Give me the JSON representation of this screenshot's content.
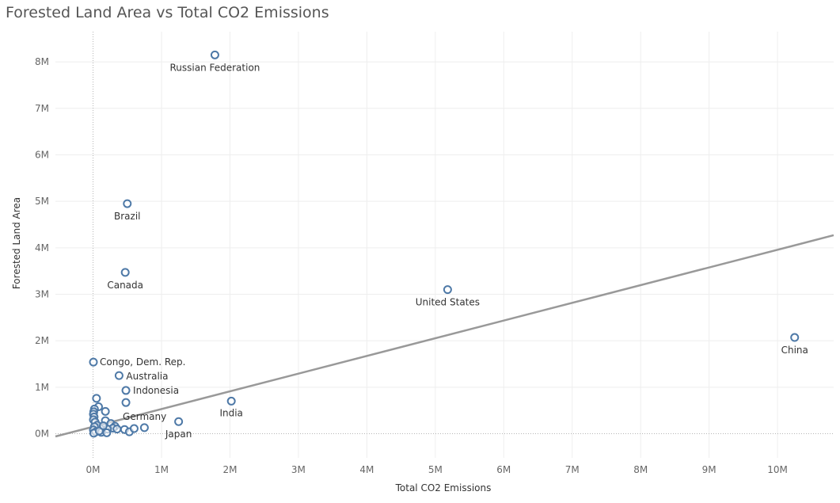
{
  "chart_data": {
    "type": "scatter",
    "title": "Forested Land Area vs Total CO2 Emissions",
    "xlabel": "Total CO2 Emissions",
    "ylabel": "Forested Land Area",
    "xlim": [
      -550000,
      10820000
    ],
    "ylim": [
      -520000,
      8650000
    ],
    "x_ticks": [
      0,
      1000000,
      2000000,
      3000000,
      4000000,
      5000000,
      6000000,
      7000000,
      8000000,
      9000000,
      10000000
    ],
    "x_tick_labels": [
      "0M",
      "1M",
      "2M",
      "3M",
      "4M",
      "5M",
      "6M",
      "7M",
      "8M",
      "9M",
      "10M"
    ],
    "y_ticks": [
      0,
      1000000,
      2000000,
      3000000,
      4000000,
      5000000,
      6000000,
      7000000,
      8000000
    ],
    "y_tick_labels": [
      "0M",
      "1M",
      "2M",
      "3M",
      "4M",
      "5M",
      "6M",
      "7M",
      "8M"
    ],
    "grid": true,
    "marker_color": "#4e79a7",
    "trend_color": "#999999",
    "trend_line": {
      "x": [
        -550000,
        10820000
      ],
      "y": [
        -60000,
        4270000
      ]
    },
    "points": [
      {
        "label": "Russian Federation",
        "x": 1780000,
        "y": 8150000
      },
      {
        "label": "Brazil",
        "x": 500000,
        "y": 4950000
      },
      {
        "label": "Canada",
        "x": 470000,
        "y": 3470000
      },
      {
        "label": "United States",
        "x": 5180000,
        "y": 3100000
      },
      {
        "label": "China",
        "x": 10250000,
        "y": 2070000
      },
      {
        "label": "Congo, Dem. Rep.",
        "x": 5000,
        "y": 1540000
      },
      {
        "label": "Australia",
        "x": 380000,
        "y": 1250000
      },
      {
        "label": "Indonesia",
        "x": 480000,
        "y": 930000
      },
      {
        "label": "India",
        "x": 2020000,
        "y": 700000
      },
      {
        "label": "Germany",
        "x": 480000,
        "y": 670000
      },
      {
        "label": "Japan",
        "x": 1250000,
        "y": 260000
      },
      {
        "label": "",
        "x": 50000,
        "y": 760000
      },
      {
        "label": "",
        "x": 80000,
        "y": 580000
      },
      {
        "label": "",
        "x": 20000,
        "y": 530000
      },
      {
        "label": "",
        "x": 10000,
        "y": 470000
      },
      {
        "label": "",
        "x": 180000,
        "y": 480000
      },
      {
        "label": "",
        "x": 5000,
        "y": 420000
      },
      {
        "label": "",
        "x": 15000,
        "y": 360000
      },
      {
        "label": "",
        "x": 5000,
        "y": 300000
      },
      {
        "label": "",
        "x": 30000,
        "y": 250000
      },
      {
        "label": "",
        "x": 180000,
        "y": 280000
      },
      {
        "label": "",
        "x": 260000,
        "y": 220000
      },
      {
        "label": "",
        "x": 320000,
        "y": 160000
      },
      {
        "label": "",
        "x": 290000,
        "y": 120000
      },
      {
        "label": "",
        "x": 210000,
        "y": 100000
      },
      {
        "label": "",
        "x": 100000,
        "y": 120000
      },
      {
        "label": "",
        "x": 60000,
        "y": 180000
      },
      {
        "label": "",
        "x": 20000,
        "y": 150000
      },
      {
        "label": "",
        "x": 5000,
        "y": 80000
      },
      {
        "label": "",
        "x": 40000,
        "y": 40000
      },
      {
        "label": "",
        "x": 120000,
        "y": 30000
      },
      {
        "label": "",
        "x": 200000,
        "y": 20000
      },
      {
        "label": "",
        "x": 350000,
        "y": 100000
      },
      {
        "label": "",
        "x": 460000,
        "y": 90000
      },
      {
        "label": "",
        "x": 530000,
        "y": 40000
      },
      {
        "label": "",
        "x": 600000,
        "y": 110000
      },
      {
        "label": "",
        "x": 750000,
        "y": 130000
      },
      {
        "label": "",
        "x": 10000,
        "y": 10000
      },
      {
        "label": "",
        "x": 90000,
        "y": 60000
      },
      {
        "label": "",
        "x": 150000,
        "y": 170000
      }
    ]
  }
}
